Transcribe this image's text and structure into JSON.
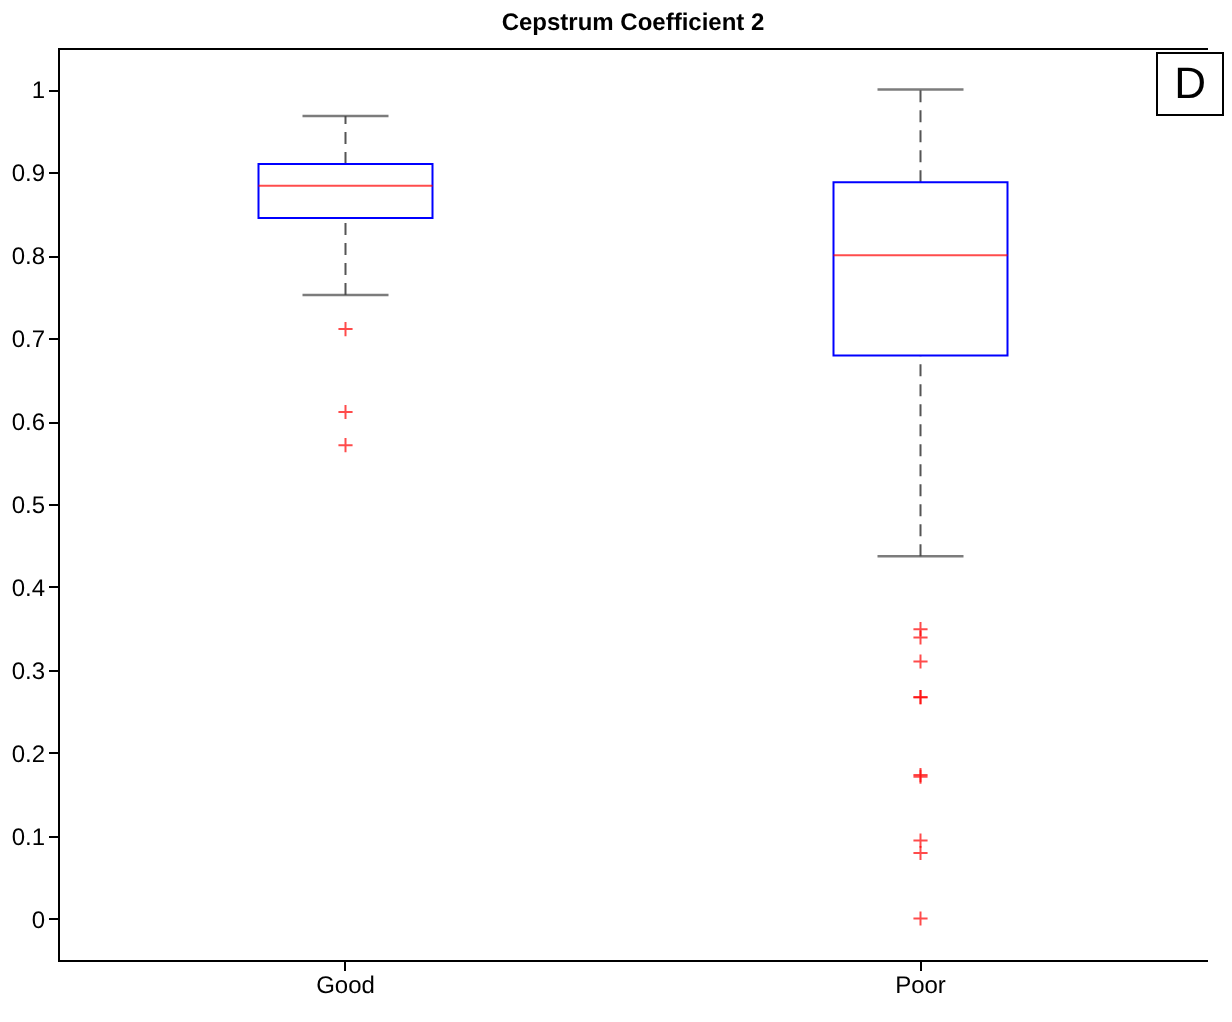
{
  "chart_data": {
    "type": "box",
    "title": "Cepstrum Coefficient 2",
    "categories": [
      "Good",
      "Poor"
    ],
    "boxes": [
      {
        "low": 0.752,
        "q1": 0.845,
        "median": 0.884,
        "q3": 0.91,
        "high": 0.968,
        "outliers": [
          0.711,
          0.611,
          0.571
        ]
      },
      {
        "low": 0.437,
        "q1": 0.679,
        "median": 0.8,
        "q3": 0.888,
        "high": 1.0,
        "outliers": [
          0.349,
          0.339,
          0.31,
          0.267,
          0.267,
          0.173,
          0.171,
          0.094,
          0.079,
          0.0
        ]
      }
    ],
    "ylim": [
      -0.05,
      1.05
    ],
    "yticks": [
      0,
      0.1,
      0.2,
      0.3,
      0.4,
      0.5,
      0.6,
      0.7,
      0.8,
      0.9,
      1
    ],
    "annotations": [
      "D"
    ],
    "grid": false,
    "marker": "cross"
  }
}
